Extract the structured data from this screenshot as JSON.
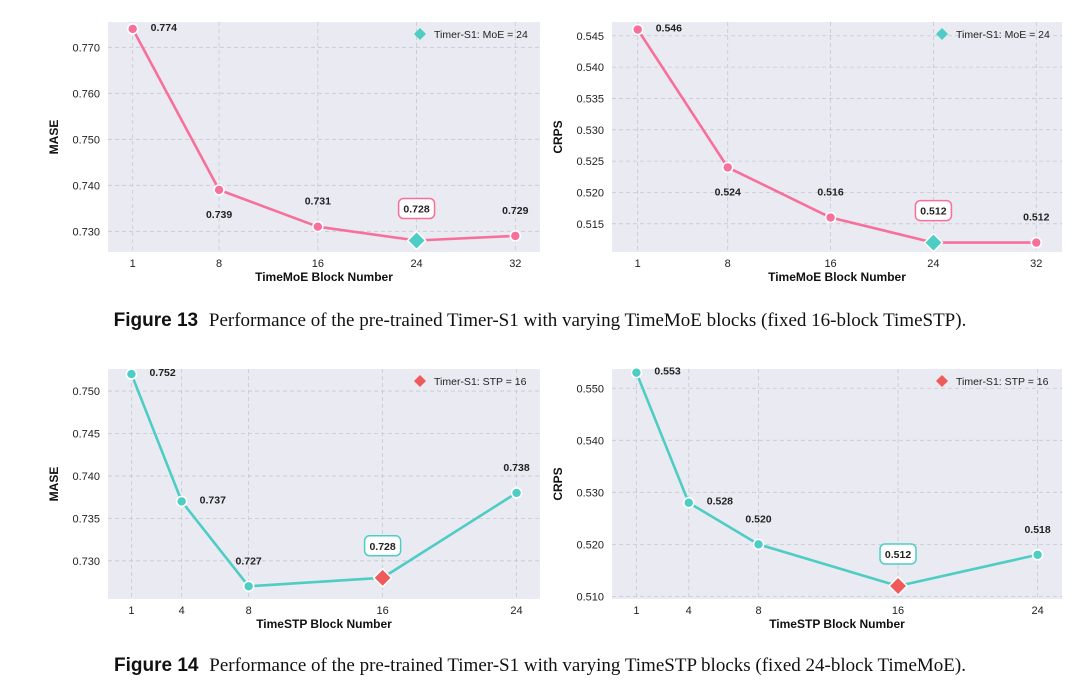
{
  "colors": {
    "pink": "#f7709a",
    "teal": "#4ecdc4",
    "coral": "#ef5b5b",
    "plot_bg": "#eaeaf2",
    "grid": "#c8c8d0"
  },
  "captions": [
    {
      "fig": "Figure 13",
      "text": "Performance of the pre-trained Timer-S1 with varying TimeMoE blocks (fixed 16-block TimeSTP)."
    },
    {
      "fig": "Figure 14",
      "text": "Performance of the pre-trained Timer-S1 with varying TimeSTP blocks (fixed 24-block TimeMoE)."
    }
  ],
  "chart_data": [
    {
      "type": "line",
      "xlabel": "TimeMoE Block Number",
      "ylabel": "MASE",
      "x": [
        1,
        8,
        16,
        24,
        32
      ],
      "values": [
        0.774,
        0.739,
        0.731,
        0.728,
        0.729
      ],
      "labels": [
        "0.774",
        "0.739",
        "0.731",
        "0.728",
        "0.729"
      ],
      "ylim": [
        0.7255,
        0.7755
      ],
      "yticks": [
        0.73,
        0.74,
        0.75,
        0.76,
        0.77
      ],
      "ytick_labels": [
        "0.730",
        "0.740",
        "0.750",
        "0.760",
        "0.770"
      ],
      "xlim": [
        -1,
        34
      ],
      "highlight_index": 3,
      "legend": {
        "label": "Timer-S1: MoE = 24",
        "position": "top-right"
      },
      "grid": true
    },
    {
      "type": "line",
      "xlabel": "TimeMoE Block Number",
      "ylabel": "CRPS",
      "x": [
        1,
        8,
        16,
        24,
        32
      ],
      "values": [
        0.546,
        0.524,
        0.516,
        0.512,
        0.512
      ],
      "labels": [
        "0.546",
        "0.524",
        "0.516",
        "0.512",
        "0.512"
      ],
      "ylim": [
        0.5105,
        0.5472
      ],
      "yticks": [
        0.515,
        0.52,
        0.525,
        0.53,
        0.535,
        0.54,
        0.545
      ],
      "ytick_labels": [
        "0.515",
        "0.520",
        "0.525",
        "0.530",
        "0.535",
        "0.540",
        "0.545"
      ],
      "xlim": [
        -1,
        34
      ],
      "highlight_index": 3,
      "legend": {
        "label": "Timer-S1: MoE = 24",
        "position": "top-right"
      },
      "grid": true
    },
    {
      "type": "line",
      "xlabel": "TimeSTP Block Number",
      "ylabel": "MASE",
      "x": [
        1,
        4,
        8,
        16,
        24
      ],
      "values": [
        0.752,
        0.737,
        0.727,
        0.728,
        0.738
      ],
      "labels": [
        "0.752",
        "0.737",
        "0.727",
        "0.728",
        "0.738"
      ],
      "ylim": [
        0.7255,
        0.7526
      ],
      "yticks": [
        0.73,
        0.735,
        0.74,
        0.745,
        0.75
      ],
      "ytick_labels": [
        "0.730",
        "0.735",
        "0.740",
        "0.745",
        "0.750"
      ],
      "xlim": [
        -0.4,
        25.4
      ],
      "highlight_index": 3,
      "legend": {
        "label": "Timer-S1: STP = 16",
        "position": "top-right"
      },
      "grid": true
    },
    {
      "type": "line",
      "xlabel": "TimeSTP Block Number",
      "ylabel": "CRPS",
      "x": [
        1,
        4,
        8,
        16,
        24
      ],
      "values": [
        0.553,
        0.528,
        0.52,
        0.512,
        0.518
      ],
      "labels": [
        "0.553",
        "0.528",
        "0.520",
        "0.512",
        "0.518"
      ],
      "ylim": [
        0.5095,
        0.5537
      ],
      "yticks": [
        0.51,
        0.52,
        0.53,
        0.54,
        0.55
      ],
      "ytick_labels": [
        "0.510",
        "0.520",
        "0.530",
        "0.540",
        "0.550"
      ],
      "xlim": [
        -0.4,
        25.4
      ],
      "highlight_index": 3,
      "legend": {
        "label": "Timer-S1: STP = 16",
        "position": "top-right"
      },
      "grid": true
    }
  ]
}
